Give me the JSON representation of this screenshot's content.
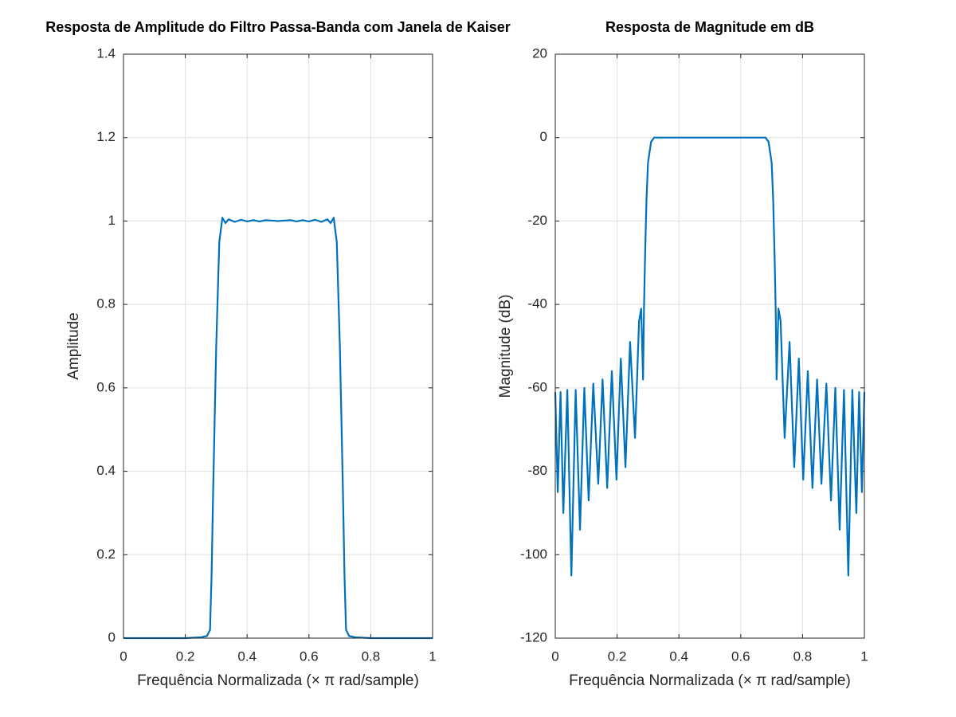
{
  "chart_data": [
    {
      "type": "line",
      "title": "Resposta de Amplitude do Filtro Passa-Banda com Janela de Kaiser",
      "x_label": "Frequência Normalizada (× π rad/sample)",
      "y_label": "Amplitude",
      "x": [
        0,
        0.2,
        0.25,
        0.27,
        0.28,
        0.285,
        0.29,
        0.3,
        0.31,
        0.32,
        0.33,
        0.34,
        0.36,
        0.38,
        0.4,
        0.42,
        0.44,
        0.46,
        0.5,
        0.54,
        0.56,
        0.58,
        0.6,
        0.62,
        0.64,
        0.66,
        0.67,
        0.68,
        0.69,
        0.7,
        0.71,
        0.715,
        0.72,
        0.73,
        0.75,
        0.8,
        1
      ],
      "values": [
        0,
        0,
        0.002,
        0.005,
        0.02,
        0.15,
        0.35,
        0.7,
        0.95,
        1.008,
        0.995,
        1.004,
        0.998,
        1.003,
        0.999,
        1.002,
        0.999,
        1.002,
        1,
        1.002,
        0.999,
        1.002,
        0.999,
        1.003,
        0.998,
        1.004,
        0.995,
        1.008,
        0.95,
        0.7,
        0.35,
        0.15,
        0.02,
        0.005,
        0.002,
        0,
        0
      ],
      "color": "#0072bd",
      "xlim": [
        0,
        1
      ],
      "ylim": [
        0,
        1.4
      ],
      "xticks": [
        0,
        0.2,
        0.4,
        0.6,
        0.8,
        1
      ],
      "yticks": [
        0,
        0.2,
        0.4,
        0.6,
        0.8,
        1,
        1.2,
        1.4
      ],
      "grid": true
    },
    {
      "type": "line",
      "title": "Resposta de Magnitude em dB",
      "x_label": "Frequência Normalizada (× π rad/sample)",
      "y_label": "Magnitude (dB)",
      "x": [
        0,
        0.008,
        0.017,
        0.026,
        0.039,
        0.052,
        0.066,
        0.08,
        0.094,
        0.108,
        0.123,
        0.139,
        0.153,
        0.168,
        0.183,
        0.198,
        0.212,
        0.227,
        0.242,
        0.258,
        0.271,
        0.278,
        0.284,
        0.287,
        0.29,
        0.295,
        0.3,
        0.31,
        0.32,
        0.5,
        0.68,
        0.69,
        0.7,
        0.705,
        0.71,
        0.713,
        0.716,
        0.722,
        0.729,
        0.742,
        0.758,
        0.773,
        0.788,
        0.802,
        0.817,
        0.832,
        0.847,
        0.861,
        0.877,
        0.892,
        0.906,
        0.92,
        0.934,
        0.948,
        0.961,
        0.974,
        0.983,
        0.992,
        1
      ],
      "values": [
        -61,
        -85,
        -61,
        -90,
        -60.5,
        -105,
        -60.5,
        -94,
        -60,
        -87,
        -59,
        -83,
        -58,
        -84,
        -56,
        -82,
        -53,
        -79,
        -49,
        -72,
        -44,
        -41,
        -58,
        -41,
        -30,
        -15,
        -6,
        -1,
        0,
        0,
        0,
        -1,
        -6,
        -15,
        -30,
        -41,
        -58,
        -41,
        -44,
        -72,
        -49,
        -79,
        -53,
        -82,
        -56,
        -84,
        -58,
        -83,
        -59,
        -87,
        -60,
        -94,
        -60.5,
        -105,
        -60.5,
        -90,
        -61,
        -85,
        -61
      ],
      "color": "#0072bd",
      "xlim": [
        0,
        1
      ],
      "ylim": [
        -120,
        20
      ],
      "xticks": [
        0,
        0.2,
        0.4,
        0.6,
        0.8,
        1
      ],
      "yticks": [
        -120,
        -100,
        -80,
        -60,
        -40,
        -20,
        0,
        20
      ],
      "grid": true
    }
  ]
}
